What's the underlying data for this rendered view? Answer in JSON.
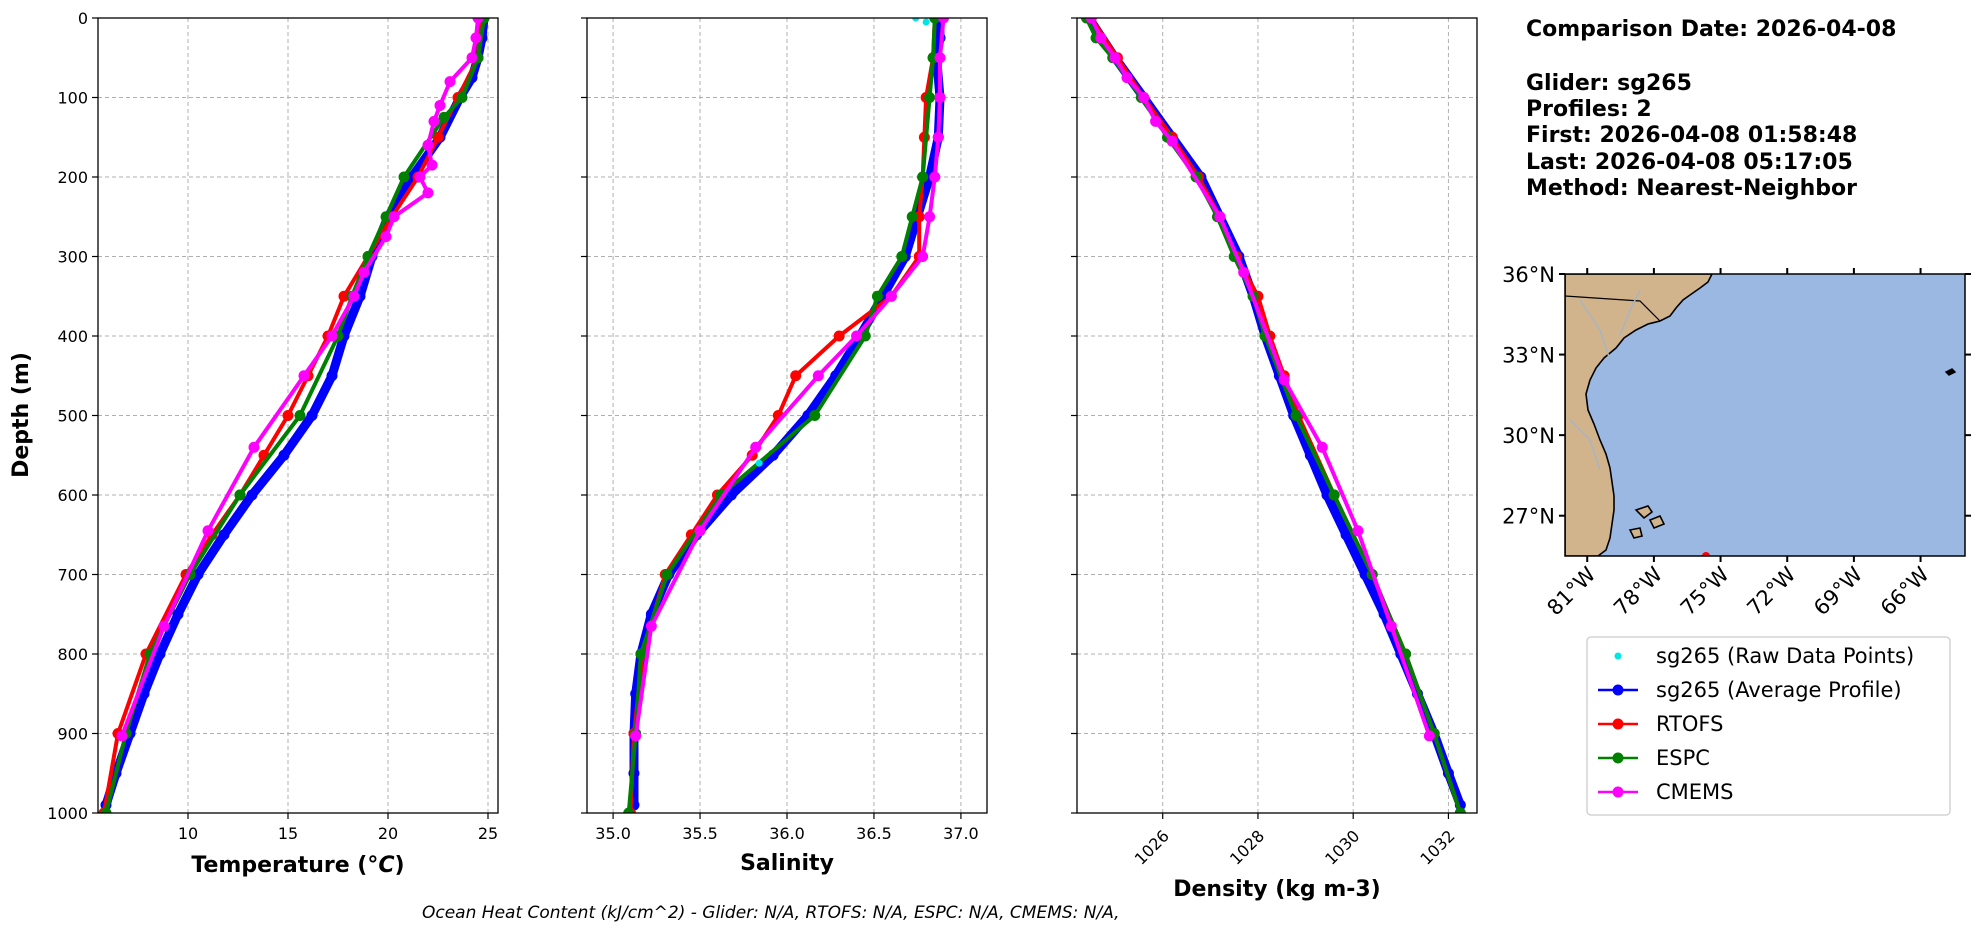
{
  "info_panel": {
    "comparison_date": "Comparison Date: 2026-04-08",
    "glider": "Glider: sg265",
    "profiles": "Profiles: 2",
    "first": "First: 2026-04-08 01:58:48",
    "last": "Last: 2026-04-08 05:17:05",
    "method": "Method: Nearest-Neighbor"
  },
  "footer": {
    "ohc_text": "Ocean Heat Content (kJ/cm^2) - Glider: N/A,  RTOFS: N/A,  ESPC: N/A,  CMEMS: N/A,"
  },
  "legend": [
    {
      "label": "sg265 (Raw Data Points)",
      "color": "#00e5e5",
      "style": "points"
    },
    {
      "label": "sg265 (Average Profile)",
      "color": "#0000ff",
      "style": "line-marker"
    },
    {
      "label": "RTOFS",
      "color": "#ff0000",
      "style": "line-marker"
    },
    {
      "label": "ESPC",
      "color": "#008000",
      "style": "line-marker"
    },
    {
      "label": "CMEMS",
      "color": "#ff00ff",
      "style": "line-marker"
    }
  ],
  "map": {
    "lat_ticks": [
      "36°N",
      "33°N",
      "30°N",
      "27°N"
    ],
    "lon_ticks": [
      "81°W",
      "78°W",
      "75°W",
      "72°W",
      "69°W",
      "66°W"
    ],
    "ocean_color": "#9bb8e3",
    "land_color": "#d2b48c",
    "extent": {
      "lon": [
        -82.0,
        -64.0
      ],
      "lat": [
        25.5,
        36.0
      ]
    }
  },
  "chart_data": [
    {
      "type": "line",
      "xlabel": "Temperature (°C)",
      "ylabel": "Depth (m)",
      "xlim": [
        5.5,
        25.5
      ],
      "ylim": [
        1000,
        0
      ],
      "xticks": [
        10,
        15,
        20,
        25
      ],
      "yticks": [
        0,
        100,
        200,
        300,
        400,
        500,
        600,
        700,
        800,
        900,
        1000
      ],
      "grid": true,
      "series": [
        {
          "name": "sg265 (Average Profile)",
          "color": "#0000ff",
          "depth": [
            0,
            25,
            50,
            75,
            100,
            150,
            200,
            250,
            300,
            350,
            400,
            450,
            500,
            550,
            600,
            650,
            700,
            750,
            800,
            850,
            900,
            950,
            990
          ],
          "values": [
            24.8,
            24.7,
            24.5,
            24.2,
            23.6,
            22.6,
            21.2,
            20.0,
            19.2,
            18.6,
            17.8,
            17.2,
            16.2,
            14.8,
            13.2,
            11.8,
            10.5,
            9.5,
            8.6,
            7.8,
            7.1,
            6.4,
            5.9
          ]
        },
        {
          "name": "RTOFS",
          "color": "#ff0000",
          "depth": [
            0,
            50,
            100,
            150,
            200,
            250,
            300,
            350,
            400,
            450,
            500,
            550,
            600,
            650,
            700,
            800,
            900,
            1000
          ],
          "values": [
            24.6,
            24.5,
            23.5,
            22.5,
            21.5,
            20.2,
            19.0,
            17.8,
            17.0,
            16.0,
            15.0,
            13.8,
            12.6,
            11.2,
            9.9,
            7.9,
            6.5,
            5.8
          ]
        },
        {
          "name": "ESPC",
          "color": "#008000",
          "depth": [
            0,
            50,
            100,
            125,
            200,
            250,
            300,
            350,
            400,
            500,
            600,
            700,
            800,
            900,
            1000
          ],
          "values": [
            24.8,
            24.5,
            23.7,
            22.8,
            20.8,
            19.9,
            19.0,
            18.2,
            17.5,
            15.6,
            12.6,
            10.1,
            8.1,
            6.9,
            5.9
          ]
        },
        {
          "name": "CMEMS",
          "color": "#ff00ff",
          "depth": [
            0,
            25,
            50,
            80,
            110,
            130,
            160,
            185,
            200,
            220,
            250,
            275,
            320,
            350,
            400,
            450,
            540,
            645,
            765,
            903
          ],
          "values": [
            24.5,
            24.4,
            24.2,
            23.1,
            22.6,
            22.3,
            22.0,
            22.2,
            21.6,
            22.0,
            20.3,
            19.9,
            18.8,
            18.3,
            17.2,
            15.8,
            13.3,
            11.0,
            8.8,
            6.7
          ]
        }
      ]
    },
    {
      "type": "line",
      "xlabel": "Salinity",
      "xlim": [
        34.85,
        37.15
      ],
      "ylim": [
        1000,
        0
      ],
      "xticks": [
        35.0,
        35.5,
        36.0,
        36.5,
        37.0
      ],
      "xticklabels": [
        "35.0",
        "35.5",
        "36.0",
        "36.5",
        "37.0"
      ],
      "grid": true,
      "series": [
        {
          "name": "sg265 (Average Profile)",
          "color": "#0000ff",
          "depth": [
            0,
            25,
            50,
            100,
            150,
            200,
            250,
            300,
            350,
            400,
            450,
            500,
            550,
            600,
            650,
            700,
            750,
            800,
            850,
            900,
            950,
            990
          ],
          "values": [
            36.88,
            36.88,
            36.86,
            36.88,
            36.87,
            36.82,
            36.75,
            36.68,
            36.55,
            36.42,
            36.28,
            36.12,
            35.92,
            35.68,
            35.48,
            35.32,
            35.22,
            35.16,
            35.13,
            35.12,
            35.12,
            35.12
          ]
        },
        {
          "name": "RTOFS",
          "color": "#ff0000",
          "depth": [
            0,
            50,
            100,
            150,
            200,
            250,
            300,
            350,
            400,
            450,
            500,
            550,
            600,
            650,
            700,
            800,
            900,
            1000
          ],
          "values": [
            36.85,
            36.84,
            36.8,
            36.79,
            36.78,
            36.76,
            36.76,
            36.6,
            36.3,
            36.05,
            35.95,
            35.8,
            35.6,
            35.45,
            35.3,
            35.17,
            35.12,
            35.1
          ]
        },
        {
          "name": "ESPC",
          "color": "#008000",
          "depth": [
            0,
            50,
            100,
            200,
            250,
            300,
            350,
            400,
            500,
            600,
            700,
            800,
            900,
            1000
          ],
          "values": [
            36.85,
            36.84,
            36.82,
            36.78,
            36.72,
            36.66,
            36.52,
            36.45,
            36.16,
            35.62,
            35.31,
            35.16,
            35.13,
            35.09
          ]
        },
        {
          "name": "CMEMS",
          "color": "#ff00ff",
          "depth": [
            0,
            50,
            100,
            150,
            200,
            250,
            300,
            350,
            400,
            450,
            540,
            645,
            765,
            903
          ],
          "values": [
            36.9,
            36.88,
            36.88,
            36.87,
            36.85,
            36.82,
            36.78,
            36.6,
            36.4,
            36.18,
            35.82,
            35.5,
            35.22,
            35.13
          ]
        },
        {
          "name": "sg265 (Raw Data Points)",
          "color": "#00e5e5",
          "depth": [
            0,
            5,
            560
          ],
          "values": [
            36.74,
            36.8,
            35.84
          ]
        }
      ]
    },
    {
      "type": "line",
      "xlabel": "Density (kg m-3)",
      "xlim": [
        1024.2,
        1032.6
      ],
      "ylim": [
        1000,
        0
      ],
      "xticks": [
        1026,
        1028,
        1030,
        1032
      ],
      "grid": true,
      "series": [
        {
          "name": "sg265 (Average Profile)",
          "color": "#0000ff",
          "depth": [
            0,
            50,
            100,
            150,
            200,
            250,
            300,
            350,
            400,
            450,
            500,
            550,
            600,
            650,
            700,
            750,
            800,
            850,
            900,
            950,
            990
          ],
          "values": [
            1024.45,
            1025.0,
            1025.6,
            1026.2,
            1026.8,
            1027.2,
            1027.6,
            1027.9,
            1028.15,
            1028.45,
            1028.75,
            1029.1,
            1029.45,
            1029.85,
            1030.25,
            1030.65,
            1031.0,
            1031.35,
            1031.7,
            1032.0,
            1032.25
          ]
        },
        {
          "name": "RTOFS",
          "color": "#ff0000",
          "depth": [
            0,
            50,
            100,
            150,
            200,
            250,
            300,
            350,
            400,
            450,
            500,
            600,
            700,
            800,
            900,
            1000
          ],
          "values": [
            1024.5,
            1025.05,
            1025.6,
            1026.2,
            1026.75,
            1027.2,
            1027.55,
            1028.0,
            1028.25,
            1028.55,
            1028.85,
            1029.6,
            1030.4,
            1031.1,
            1031.7,
            1032.25
          ]
        },
        {
          "name": "ESPC",
          "color": "#008000",
          "depth": [
            0,
            25,
            50,
            100,
            150,
            200,
            250,
            300,
            350,
            400,
            500,
            600,
            700,
            800,
            900,
            1000
          ],
          "values": [
            1024.4,
            1024.6,
            1024.95,
            1025.55,
            1026.1,
            1026.7,
            1027.15,
            1027.5,
            1027.9,
            1028.15,
            1028.8,
            1029.6,
            1030.4,
            1031.1,
            1031.7,
            1032.25
          ]
        },
        {
          "name": "CMEMS",
          "color": "#ff00ff",
          "depth": [
            0,
            25,
            50,
            75,
            100,
            130,
            155,
            250,
            320,
            455,
            540,
            645,
            765,
            903
          ],
          "values": [
            1024.5,
            1024.7,
            1025.0,
            1025.25,
            1025.6,
            1025.85,
            1026.2,
            1027.2,
            1027.7,
            1028.55,
            1029.35,
            1030.1,
            1030.8,
            1031.6
          ]
        }
      ]
    }
  ]
}
